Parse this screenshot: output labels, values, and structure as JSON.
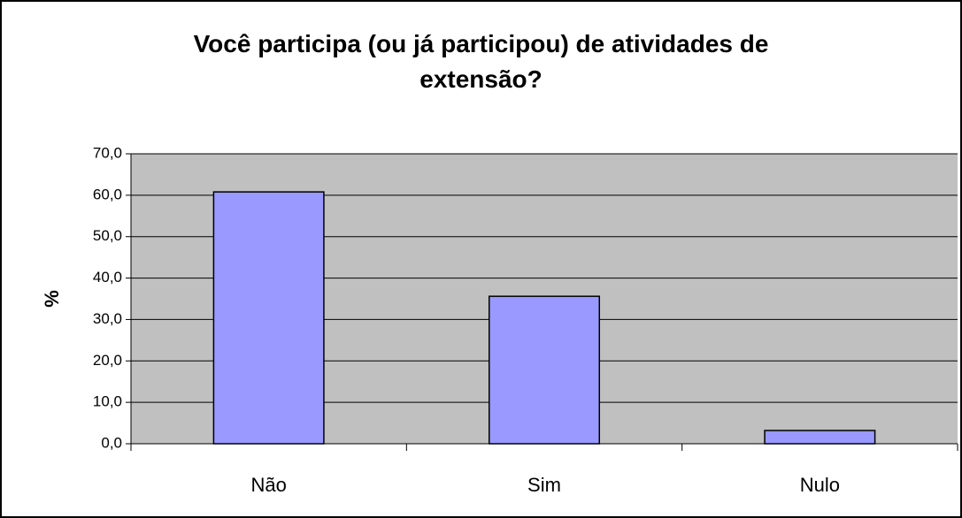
{
  "chart_data": {
    "type": "bar",
    "title": "Você participa (ou já participou) de atividades de extensão?",
    "ylabel": "%",
    "categories": [
      "Não",
      "Sim",
      "Nulo"
    ],
    "values": [
      60.8,
      35.6,
      3.2
    ],
    "color": "#9999ff",
    "ylim": [
      0,
      70
    ],
    "yticks": [
      {
        "value": 0,
        "label": "0,0"
      },
      {
        "value": 10,
        "label": "10,0"
      },
      {
        "value": 20,
        "label": "20,0"
      },
      {
        "value": 30,
        "label": "30,0"
      },
      {
        "value": 40,
        "label": "40,0"
      },
      {
        "value": 50,
        "label": "50,0"
      },
      {
        "value": 60,
        "label": "60,0"
      },
      {
        "value": 70,
        "label": "70,0"
      }
    ],
    "grid": true
  }
}
